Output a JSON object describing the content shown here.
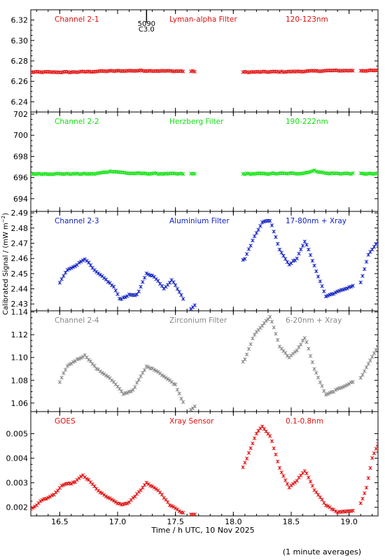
{
  "chart_data": {
    "type": "scatter",
    "x_range": [
      16.25,
      19.25
    ],
    "x_ticks": [
      16.5,
      17.0,
      17.5,
      18.0,
      18.5,
      19.0
    ],
    "x_tick_labels": [
      "16.5",
      "17.0",
      "17.5",
      "18.0",
      "18.5",
      "19.0"
    ],
    "xlabel": "Time / h UTC, 10 Nov 2025",
    "ylabel": "Calibrated Signal / (mW m⁻²)",
    "footnote": "(1 minute averages)",
    "marker_annotation": {
      "x": 17.25,
      "label1": "5090",
      "label2": "C3.0"
    },
    "gaps": [
      [
        17.58,
        17.62
      ],
      [
        17.67,
        18.07
      ],
      [
        19.05,
        19.09
      ]
    ],
    "panels": [
      {
        "id": "ch21",
        "color": "#e01010",
        "labels": [
          "Channel 2-1",
          "Lyman-alpha Filter",
          "120-123nm"
        ],
        "ylim": [
          6.23,
          6.33
        ],
        "yticks": [
          6.24,
          6.26,
          6.28,
          6.3,
          6.32
        ],
        "ytick_labels": [
          "6.24",
          "6.26",
          "6.28",
          "6.30",
          "6.32"
        ],
        "points": [
          [
            16.25,
            6.269
          ],
          [
            16.6,
            6.269
          ],
          [
            16.9,
            6.27
          ],
          [
            17.2,
            6.2705
          ],
          [
            17.5,
            6.27
          ],
          [
            18.1,
            6.269
          ],
          [
            18.5,
            6.2695
          ],
          [
            18.85,
            6.2705
          ],
          [
            19.25,
            6.2705
          ]
        ]
      },
      {
        "id": "ch22",
        "color": "#10e010",
        "labels": [
          "Channel 2-2",
          "Herzberg Filter",
          "190-222nm"
        ],
        "ylim": [
          692.8,
          702.2
        ],
        "yticks": [
          694,
          696,
          698,
          700,
          702
        ],
        "ytick_labels": [
          "694",
          "696",
          "698",
          "700",
          "702"
        ],
        "points": [
          [
            16.25,
            696.35
          ],
          [
            16.8,
            696.35
          ],
          [
            16.95,
            696.6
          ],
          [
            17.1,
            696.4
          ],
          [
            17.5,
            696.35
          ],
          [
            18.1,
            696.35
          ],
          [
            18.6,
            696.4
          ],
          [
            18.7,
            696.65
          ],
          [
            18.8,
            696.4
          ],
          [
            19.25,
            696.35
          ]
        ]
      },
      {
        "id": "ch23",
        "color": "#1020c0",
        "labels": [
          "Channel 2-3",
          "Aluminium Filter",
          "17-80nm + Xray"
        ],
        "ylim": [
          2.4255,
          2.491
        ],
        "yticks": [
          2.43,
          2.44,
          2.45,
          2.46,
          2.47,
          2.48,
          2.49
        ],
        "ytick_labels": [
          "2.43",
          "2.44",
          "2.45",
          "2.46",
          "2.47",
          "2.48",
          "2.49"
        ],
        "points": [
          [
            16.5,
            2.444
          ],
          [
            16.56,
            2.452
          ],
          [
            16.65,
            2.456
          ],
          [
            16.72,
            2.46
          ],
          [
            16.8,
            2.452
          ],
          [
            16.9,
            2.446
          ],
          [
            16.97,
            2.441
          ],
          [
            17.02,
            2.433
          ],
          [
            17.1,
            2.436
          ],
          [
            17.17,
            2.436
          ],
          [
            17.25,
            2.45
          ],
          [
            17.32,
            2.448
          ],
          [
            17.4,
            2.44
          ],
          [
            17.47,
            2.446
          ],
          [
            17.55,
            2.436
          ],
          [
            17.62,
            2.426
          ],
          [
            18.1,
            2.46
          ],
          [
            18.18,
            2.474
          ],
          [
            18.25,
            2.484
          ],
          [
            18.32,
            2.485
          ],
          [
            18.4,
            2.466
          ],
          [
            18.48,
            2.456
          ],
          [
            18.55,
            2.46
          ],
          [
            18.62,
            2.472
          ],
          [
            18.7,
            2.455
          ],
          [
            18.8,
            2.435
          ],
          [
            19.1,
            2.444
          ],
          [
            19.17,
            2.463
          ],
          [
            19.25,
            2.471
          ]
        ]
      },
      {
        "id": "ch24",
        "color": "#888888",
        "labels": [
          "Channel 2-4",
          "Zirconium Filter",
          "6-20nm + Xray"
        ],
        "ylim": [
          1.0525,
          1.141
        ],
        "yticks": [
          1.06,
          1.08,
          1.1,
          1.12,
          1.14
        ],
        "ytick_labels": [
          "1.06",
          "1.08",
          "1.10",
          "1.12",
          "1.14"
        ],
        "points": [
          [
            16.5,
            1.078
          ],
          [
            16.56,
            1.092
          ],
          [
            16.63,
            1.097
          ],
          [
            16.72,
            1.102
          ],
          [
            16.82,
            1.09
          ],
          [
            16.92,
            1.083
          ],
          [
            16.97,
            1.078
          ],
          [
            17.05,
            1.068
          ],
          [
            17.13,
            1.071
          ],
          [
            17.25,
            1.092
          ],
          [
            17.33,
            1.089
          ],
          [
            17.42,
            1.082
          ],
          [
            17.5,
            1.076
          ],
          [
            17.56,
            1.062
          ],
          [
            17.62,
            1.053
          ],
          [
            18.1,
            1.098
          ],
          [
            18.18,
            1.12
          ],
          [
            18.25,
            1.128
          ],
          [
            18.32,
            1.136
          ],
          [
            18.4,
            1.11
          ],
          [
            18.48,
            1.1
          ],
          [
            18.55,
            1.106
          ],
          [
            18.62,
            1.118
          ],
          [
            18.7,
            1.09
          ],
          [
            18.8,
            1.067
          ],
          [
            19.1,
            1.082
          ],
          [
            19.17,
            1.095
          ],
          [
            19.25,
            1.11
          ]
        ]
      },
      {
        "id": "goes",
        "color": "#e01010",
        "labels": [
          "GOES",
          "Xray Sensor",
          "0.1-0.8nm"
        ],
        "ylim": [
          0.00165,
          0.0059
        ],
        "yticks": [
          0.002,
          0.003,
          0.004,
          0.005
        ],
        "ytick_labels": [
          "0.002",
          "0.003",
          "0.004",
          "0.005"
        ],
        "points": [
          [
            16.25,
            0.0019
          ],
          [
            16.35,
            0.0023
          ],
          [
            16.45,
            0.0025
          ],
          [
            16.52,
            0.0029
          ],
          [
            16.62,
            0.003
          ],
          [
            16.7,
            0.0033
          ],
          [
            16.75,
            0.0031
          ],
          [
            16.85,
            0.0026
          ],
          [
            16.95,
            0.0023
          ],
          [
            17.03,
            0.0021
          ],
          [
            17.1,
            0.0022
          ],
          [
            17.18,
            0.0026
          ],
          [
            17.25,
            0.003
          ],
          [
            17.35,
            0.0027
          ],
          [
            17.45,
            0.0021
          ],
          [
            17.55,
            0.0018
          ],
          [
            17.65,
            0.0017
          ],
          [
            17.75,
            0.0017
          ],
          [
            17.82,
            0.0018
          ],
          [
            17.9,
            0.0023
          ],
          [
            18.0,
            0.0029
          ],
          [
            18.1,
            0.0038
          ],
          [
            18.2,
            0.005
          ],
          [
            18.25,
            0.0053
          ],
          [
            18.32,
            0.0049
          ],
          [
            18.4,
            0.0036
          ],
          [
            18.48,
            0.0028
          ],
          [
            18.55,
            0.0031
          ],
          [
            18.62,
            0.0035
          ],
          [
            18.7,
            0.0027
          ],
          [
            18.8,
            0.0021
          ],
          [
            18.9,
            0.0018
          ],
          [
            19.0,
            0.00185
          ],
          [
            19.08,
            0.0019
          ],
          [
            19.15,
            0.0028
          ],
          [
            19.2,
            0.004
          ],
          [
            19.25,
            0.0046
          ]
        ]
      }
    ]
  }
}
